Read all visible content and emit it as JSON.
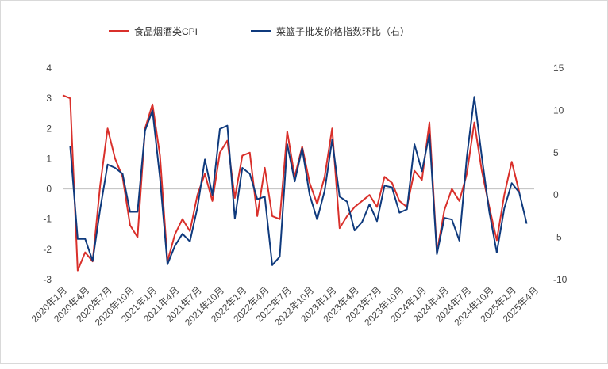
{
  "chart_data": {
    "type": "line",
    "x": [
      "2020年1月",
      "2020年2月",
      "2020年3月",
      "2020年4月",
      "2020年5月",
      "2020年6月",
      "2020年7月",
      "2020年8月",
      "2020年9月",
      "2020年10月",
      "2020年11月",
      "2020年12月",
      "2021年1月",
      "2021年2月",
      "2021年3月",
      "2021年4月",
      "2021年5月",
      "2021年6月",
      "2021年7月",
      "2021年8月",
      "2021年9月",
      "2021年10月",
      "2021年11月",
      "2021年12月",
      "2022年1月",
      "2022年2月",
      "2022年3月",
      "2022年4月",
      "2022年5月",
      "2022年6月",
      "2022年7月",
      "2022年8月",
      "2022年9月",
      "2022年10月",
      "2022年11月",
      "2022年12月",
      "2023年1月",
      "2023年2月",
      "2023年3月",
      "2023年4月",
      "2023年5月",
      "2023年6月",
      "2023年7月",
      "2023年8月",
      "2023年9月",
      "2023年10月",
      "2023年11月",
      "2023年12月",
      "2024年1月",
      "2024年2月",
      "2024年3月",
      "2024年4月",
      "2024年5月",
      "2024年6月",
      "2024年7月",
      "2024年8月",
      "2024年9月",
      "2024年10月",
      "2024年11月",
      "2024年12月",
      "2025年1月",
      "2025年2月",
      "2025年3月",
      "2025年4月"
    ],
    "tick_labels": [
      "2020年1月",
      "2020年4月",
      "2020年7月",
      "2020年10月",
      "2021年1月",
      "2021年4月",
      "2021年7月",
      "2021年10月",
      "2022年1月",
      "2022年4月",
      "2022年7月",
      "2022年10月",
      "2023年1月",
      "2023年4月",
      "2023年7月",
      "2023年10月",
      "2024年1月",
      "2024年4月",
      "2024年7月",
      "2024年10月",
      "2025年1月",
      "2025年4月"
    ],
    "series": [
      {
        "name": "食品烟酒类CPI",
        "axis": "left",
        "color": "#d9302b",
        "values": [
          3.1,
          3.0,
          -2.7,
          -2.1,
          -2.4,
          0.1,
          2.0,
          1.0,
          0.4,
          -1.2,
          -1.6,
          2.0,
          2.8,
          1.1,
          -2.4,
          -1.5,
          -1.0,
          -1.4,
          -0.2,
          0.5,
          -0.4,
          1.2,
          1.6,
          -0.3,
          1.1,
          1.2,
          -0.9,
          0.7,
          -0.9,
          -1.0,
          1.9,
          0.4,
          1.4,
          0.2,
          -0.5,
          0.4,
          2.0,
          -1.3,
          -0.9,
          -0.6,
          -0.4,
          -0.2,
          -0.6,
          0.4,
          0.2,
          -0.4,
          -0.6,
          0.6,
          0.3,
          2.2,
          -2.1,
          -0.7,
          0.0,
          -0.4,
          0.5,
          2.2,
          0.6,
          -0.6,
          -1.7,
          -0.2,
          0.9,
          -0.1,
          null,
          null
        ]
      },
      {
        "name": "菜篮子批发价格指数环比（右）",
        "axis": "right",
        "color": "#0f3a7d",
        "values": [
          null,
          5.8,
          -5.2,
          -5.2,
          -7.8,
          -1.7,
          3.6,
          3.2,
          2.5,
          -2.0,
          -2.0,
          7.6,
          10.0,
          2.0,
          -8.2,
          -6.0,
          -4.6,
          -5.5,
          -1.5,
          4.2,
          0.0,
          7.8,
          8.2,
          -2.8,
          3.2,
          2.5,
          -0.5,
          -0.2,
          -8.3,
          -7.3,
          6.0,
          1.6,
          5.5,
          0.0,
          -2.9,
          0.5,
          6.5,
          -0.2,
          -0.8,
          -4.2,
          -3.2,
          -1.1,
          -3.1,
          1.1,
          0.9,
          -2.1,
          -1.7,
          6.0,
          2.8,
          7.2,
          -7.0,
          -2.7,
          -2.9,
          -5.4,
          4.5,
          11.6,
          4.5,
          -2.0,
          -6.8,
          -1.6,
          1.4,
          0.3,
          -3.4,
          null
        ]
      }
    ],
    "y_left": {
      "ticks": [
        "-3",
        "-2",
        "-1",
        "0",
        "1",
        "2",
        "3",
        "4"
      ],
      "range": [
        -3,
        4
      ]
    },
    "y_right": {
      "ticks": [
        "-10",
        "-5",
        "0",
        "5",
        "10",
        "15"
      ],
      "range": [
        -10,
        15
      ]
    },
    "legend": [
      "食品烟酒类CPI",
      "菜篮子批发价格指数环比（右）"
    ],
    "legend_position": "top"
  }
}
